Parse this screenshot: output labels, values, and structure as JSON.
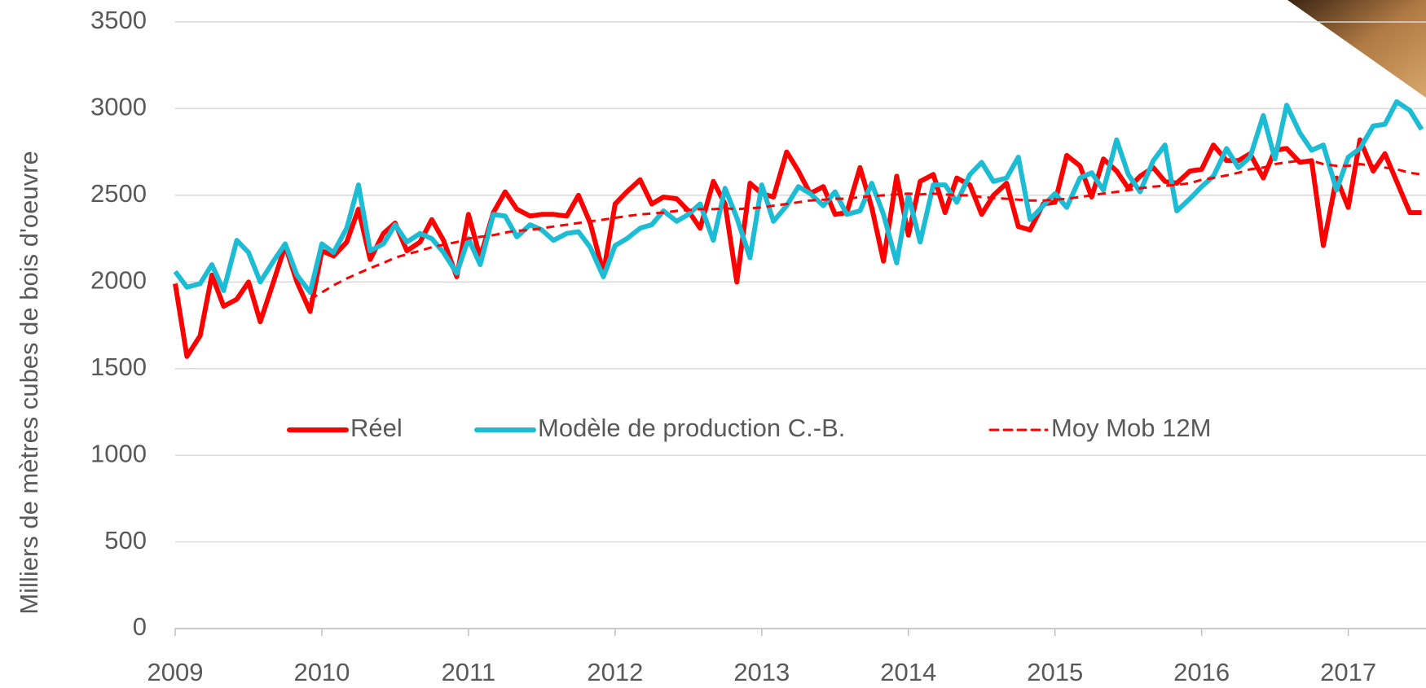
{
  "chart_data": {
    "type": "line",
    "y_label": "Milliers de mètres cubes de bois d'oeuvre",
    "x": [
      2009,
      2009.08,
      2009.17,
      2009.25,
      2009.33,
      2009.42,
      2009.5,
      2009.58,
      2009.67,
      2009.75,
      2009.83,
      2009.92,
      2010,
      2010.08,
      2010.17,
      2010.25,
      2010.33,
      2010.42,
      2010.5,
      2010.58,
      2010.67,
      2010.75,
      2010.83,
      2010.92,
      2011,
      2011.08,
      2011.17,
      2011.25,
      2011.33,
      2011.42,
      2011.5,
      2011.58,
      2011.67,
      2011.75,
      2011.83,
      2011.92,
      2012,
      2012.08,
      2012.17,
      2012.25,
      2012.33,
      2012.42,
      2012.5,
      2012.58,
      2012.67,
      2012.75,
      2012.83,
      2012.92,
      2013,
      2013.08,
      2013.17,
      2013.25,
      2013.33,
      2013.42,
      2013.5,
      2013.58,
      2013.67,
      2013.75,
      2013.83,
      2013.92,
      2014,
      2014.08,
      2014.17,
      2014.25,
      2014.33,
      2014.42,
      2014.5,
      2014.58,
      2014.67,
      2014.75,
      2014.83,
      2014.92,
      2015,
      2015.08,
      2015.17,
      2015.25,
      2015.33,
      2015.42,
      2015.5,
      2015.58,
      2015.67,
      2015.75,
      2015.83,
      2015.92,
      2016,
      2016.08,
      2016.17,
      2016.25,
      2016.33,
      2016.42,
      2016.5,
      2016.58,
      2016.67,
      2016.75,
      2016.83,
      2016.92,
      2017,
      2017.08,
      2017.17,
      2017.25,
      2017.33,
      2017.42,
      2017.5
    ],
    "series": [
      {
        "name": "Réel",
        "color": "#ff0000",
        "dash": false,
        "values": [
          1990,
          1570,
          1690,
          2040,
          1860,
          1900,
          2000,
          1770,
          2000,
          2210,
          2000,
          1830,
          2180,
          2150,
          2230,
          2420,
          2130,
          2280,
          2340,
          2180,
          2230,
          2360,
          2240,
          2030,
          2390,
          2140,
          2400,
          2520,
          2420,
          2380,
          2390,
          2390,
          2380,
          2500,
          2340,
          2050,
          2450,
          2520,
          2590,
          2450,
          2490,
          2480,
          2410,
          2310,
          2580,
          2450,
          2000,
          2570,
          2510,
          2490,
          2750,
          2640,
          2510,
          2550,
          2390,
          2400,
          2660,
          2430,
          2120,
          2610,
          2270,
          2580,
          2620,
          2400,
          2600,
          2560,
          2390,
          2500,
          2570,
          2320,
          2300,
          2450,
          2460,
          2730,
          2670,
          2490,
          2710,
          2640,
          2540,
          2610,
          2660,
          2580,
          2570,
          2640,
          2650,
          2790,
          2700,
          2700,
          2740,
          2600,
          2760,
          2770,
          2690,
          2700,
          2210,
          2600,
          2430,
          2820,
          2640,
          2740,
          2580,
          2400,
          2400
        ]
      },
      {
        "name": "Modèle de production C.-B.",
        "color": "#1cbcd4",
        "dash": false,
        "values": [
          2060,
          1970,
          1990,
          2100,
          1950,
          2240,
          2170,
          2000,
          2120,
          2220,
          2040,
          1940,
          2220,
          2170,
          2310,
          2560,
          2180,
          2220,
          2330,
          2230,
          2280,
          2250,
          2170,
          2050,
          2250,
          2100,
          2390,
          2380,
          2260,
          2330,
          2300,
          2240,
          2280,
          2290,
          2200,
          2030,
          2210,
          2250,
          2310,
          2330,
          2410,
          2350,
          2390,
          2450,
          2240,
          2540,
          2370,
          2140,
          2560,
          2350,
          2440,
          2550,
          2510,
          2440,
          2520,
          2390,
          2410,
          2570,
          2390,
          2110,
          2500,
          2230,
          2560,
          2560,
          2460,
          2620,
          2690,
          2580,
          2600,
          2720,
          2360,
          2440,
          2510,
          2430,
          2600,
          2630,
          2530,
          2820,
          2620,
          2520,
          2700,
          2790,
          2410,
          2480,
          2550,
          2610,
          2770,
          2660,
          2720,
          2960,
          2710,
          3020,
          2860,
          2760,
          2790,
          2530,
          2720,
          2770,
          2900,
          2910,
          3040,
          2990,
          2880
        ]
      },
      {
        "name": "Moy Mob 12M",
        "color": "#ff0000",
        "dash": true,
        "values": [
          null,
          null,
          null,
          null,
          null,
          null,
          null,
          null,
          null,
          null,
          null,
          1900,
          1940,
          1980,
          2020,
          2050,
          2080,
          2110,
          2140,
          2160,
          2180,
          2200,
          2215,
          2230,
          2250,
          2260,
          2270,
          2285,
          2295,
          2300,
          2310,
          2320,
          2330,
          2340,
          2350,
          2360,
          2370,
          2380,
          2390,
          2395,
          2400,
          2410,
          2415,
          2420,
          2420,
          2425,
          2420,
          2425,
          2430,
          2440,
          2450,
          2460,
          2470,
          2475,
          2480,
          2480,
          2490,
          2495,
          2500,
          2505,
          2510,
          2505,
          2510,
          2505,
          2500,
          2500,
          2490,
          2485,
          2480,
          2475,
          2470,
          2470,
          2475,
          2480,
          2490,
          2500,
          2510,
          2520,
          2530,
          2540,
          2550,
          2555,
          2560,
          2570,
          2590,
          2600,
          2615,
          2630,
          2650,
          2660,
          2680,
          2690,
          2700,
          2700,
          2680,
          2670,
          2670,
          2680,
          2670,
          2660,
          2650,
          2630,
          2620
        ]
      }
    ],
    "xlim": [
      2009,
      2017.53
    ],
    "xticks": [
      2009,
      2010,
      2011,
      2012,
      2013,
      2014,
      2015,
      2016,
      2017
    ],
    "ylim": [
      0,
      3500
    ],
    "yticks": [
      0,
      500,
      1000,
      1500,
      2000,
      2500,
      3000,
      3500
    ],
    "grid": true
  }
}
